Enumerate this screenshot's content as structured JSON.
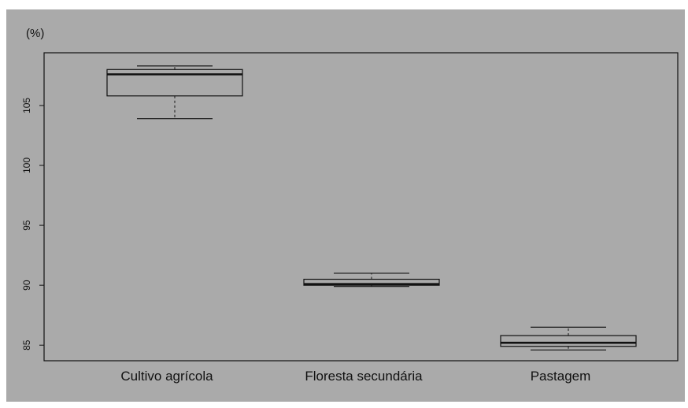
{
  "chart_data": {
    "type": "boxplot",
    "ylabel": "(%)",
    "ylim": [
      83.7,
      109.4
    ],
    "yticks": [
      85,
      90,
      95,
      100,
      105
    ],
    "ytick_labels": [
      "85",
      "90",
      "95",
      "100",
      "105"
    ],
    "categories": [
      "Cultivo agrícola",
      "Floresta secundária",
      "Pastagem"
    ],
    "boxes": [
      {
        "min": 103.9,
        "q1": 105.8,
        "median": 107.6,
        "q3": 108.0,
        "max": 108.3
      },
      {
        "min": 89.9,
        "q1": 90.0,
        "median": 90.1,
        "q3": 90.5,
        "max": 91.0
      },
      {
        "min": 84.6,
        "q1": 84.9,
        "median": 85.2,
        "q3": 85.8,
        "max": 86.5
      }
    ],
    "grid": false,
    "legend": "none"
  },
  "colors": {
    "background": "#aaaaaa",
    "box_fill": "#aaaaaa",
    "lines": "#111111"
  }
}
